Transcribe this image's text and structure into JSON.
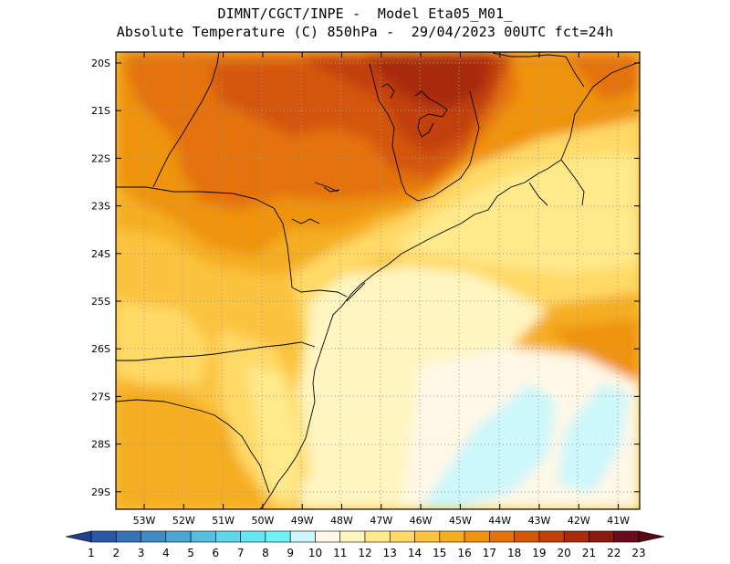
{
  "header": {
    "line1": "DIMNT/CGCT/INPE -  Model Eta05_M01_",
    "line2": "Absolute Temperature (C) 850hPa -  29/04/2023 00UTC fct=24h"
  },
  "map": {
    "lat_labels": [
      "20S",
      "21S",
      "22S",
      "23S",
      "24S",
      "25S",
      "26S",
      "27S",
      "28S",
      "29S"
    ],
    "lon_labels": [
      "53W",
      "52W",
      "51W",
      "50W",
      "49W",
      "48W",
      "47W",
      "46W",
      "45W",
      "44W",
      "43W",
      "42W",
      "41W"
    ],
    "grid": "dotted"
  },
  "colorbar": {
    "labels": [
      "1",
      "2",
      "3",
      "4",
      "5",
      "6",
      "7",
      "8",
      "9",
      "10",
      "11",
      "12",
      "13",
      "14",
      "15",
      "16",
      "17",
      "18",
      "19",
      "20",
      "21",
      "22",
      "23"
    ],
    "colors": [
      "#1f3f8f",
      "#2a58a6",
      "#3471b5",
      "#3f8cc4",
      "#4aa6d2",
      "#55bfdf",
      "#5fd6ea",
      "#66e6f2",
      "#6cf2f8",
      "#ccf7fb",
      "#fff8e6",
      "#fff5c0",
      "#ffe98a",
      "#ffd966",
      "#fbc33f",
      "#f5ae20",
      "#ef930c",
      "#e4720a",
      "#d45708",
      "#c23f07",
      "#a82c0b",
      "#8a1a10",
      "#6a0a1a",
      "#5a0716"
    ]
  }
}
